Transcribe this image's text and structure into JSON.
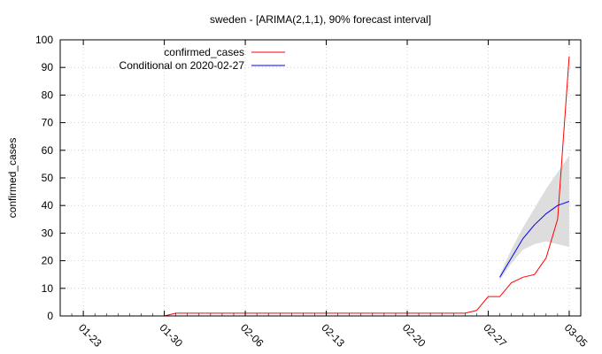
{
  "chart_data": {
    "type": "line",
    "title": "sweden -  [ARIMA(2,1,1), 90% forecast interval]",
    "xlabel": "",
    "ylabel": "confirmed_cases",
    "xlim": [
      "2020-01-21",
      "2020-03-06"
    ],
    "ylim": [
      0,
      100
    ],
    "x_ticks": [
      "01-23",
      "01-30",
      "02-06",
      "02-13",
      "02-20",
      "02-27",
      "03-05"
    ],
    "x_tick_dates": [
      "2020-01-23",
      "2020-01-30",
      "2020-02-06",
      "2020-02-13",
      "2020-02-20",
      "2020-02-27",
      "2020-03-05"
    ],
    "y_ticks": [
      0,
      10,
      20,
      30,
      40,
      50,
      60,
      70,
      80,
      90,
      100
    ],
    "grid": true,
    "legend_position": "top-left",
    "series": [
      {
        "name": "confirmed_cases",
        "color": "#ff0000",
        "points": [
          [
            "2020-01-30",
            0
          ],
          [
            "2020-01-31",
            1
          ],
          [
            "2020-02-01",
            1
          ],
          [
            "2020-02-02",
            1
          ],
          [
            "2020-02-03",
            1
          ],
          [
            "2020-02-04",
            1
          ],
          [
            "2020-02-05",
            1
          ],
          [
            "2020-02-06",
            1
          ],
          [
            "2020-02-07",
            1
          ],
          [
            "2020-02-08",
            1
          ],
          [
            "2020-02-09",
            1
          ],
          [
            "2020-02-10",
            1
          ],
          [
            "2020-02-11",
            1
          ],
          [
            "2020-02-12",
            1
          ],
          [
            "2020-02-13",
            1
          ],
          [
            "2020-02-14",
            1
          ],
          [
            "2020-02-15",
            1
          ],
          [
            "2020-02-16",
            1
          ],
          [
            "2020-02-17",
            1
          ],
          [
            "2020-02-18",
            1
          ],
          [
            "2020-02-19",
            1
          ],
          [
            "2020-02-20",
            1
          ],
          [
            "2020-02-21",
            1
          ],
          [
            "2020-02-22",
            1
          ],
          [
            "2020-02-23",
            1
          ],
          [
            "2020-02-24",
            1
          ],
          [
            "2020-02-25",
            1
          ],
          [
            "2020-02-26",
            2
          ],
          [
            "2020-02-27",
            7
          ],
          [
            "2020-02-28",
            7
          ],
          [
            "2020-02-29",
            12
          ],
          [
            "2020-03-01",
            14
          ],
          [
            "2020-03-02",
            15
          ],
          [
            "2020-03-03",
            21
          ],
          [
            "2020-03-04",
            35
          ],
          [
            "2020-03-05",
            94
          ]
        ]
      },
      {
        "name": "Conditional on 2020-02-27",
        "color": "#0000ff",
        "points": [
          [
            "2020-02-28",
            14
          ],
          [
            "2020-02-29",
            21
          ],
          [
            "2020-03-01",
            28
          ],
          [
            "2020-03-02",
            33
          ],
          [
            "2020-03-03",
            37
          ],
          [
            "2020-03-04",
            40
          ],
          [
            "2020-03-05",
            41.5
          ]
        ]
      }
    ],
    "forecast_interval": {
      "color": "#dddddd",
      "points": [
        [
          "2020-02-28",
          13,
          15
        ],
        [
          "2020-02-29",
          19,
          24
        ],
        [
          "2020-03-01",
          24,
          32
        ],
        [
          "2020-03-02",
          26,
          39
        ],
        [
          "2020-03-03",
          27,
          46
        ],
        [
          "2020-03-04",
          26,
          52
        ],
        [
          "2020-03-05",
          25,
          58
        ]
      ]
    }
  }
}
